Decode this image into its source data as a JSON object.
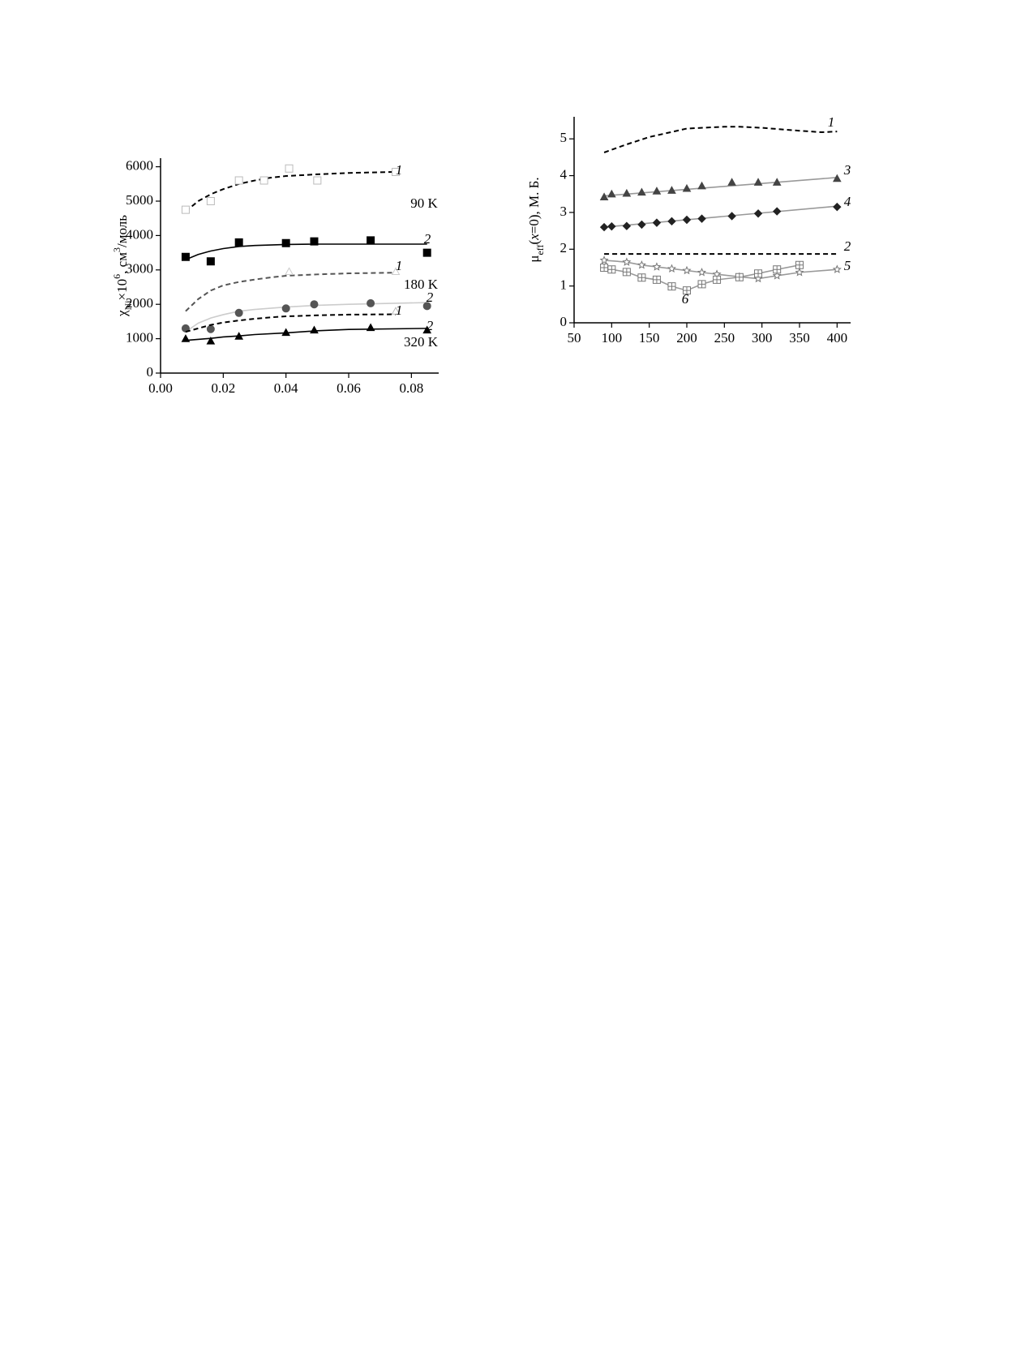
{
  "chart_data": [
    {
      "type": "line",
      "ylabel_parts": [
        "χ",
        "Ni",
        "×10",
        "6",
        ", см",
        "3",
        "/моль"
      ],
      "xlim": [
        0,
        0.0887
      ],
      "ylim": [
        0,
        6250
      ],
      "xticks": [
        {
          "value": 0,
          "label": "0.00"
        },
        0.02,
        0.04,
        0.06,
        0.08
      ],
      "yticks": [
        0,
        1000,
        2000,
        3000,
        4000,
        5000,
        6000
      ],
      "annotations": [
        "90 K",
        "180 K",
        "320 K"
      ],
      "series": [
        {
          "name": "1",
          "line_style": "dashed",
          "line_color": "#000",
          "marker": "square",
          "marker_fill": false,
          "color": "#bbbbbb",
          "line": {
            "x": [
              0.008,
              0.012,
              0.016,
              0.02,
              0.025,
              0.03,
              0.035,
              0.04,
              0.05,
              0.06,
              0.075
            ],
            "values": [
              4700,
              5000,
              5200,
              5350,
              5500,
              5600,
              5680,
              5730,
              5780,
              5820,
              5850
            ]
          },
          "points": {
            "x": [
              0.008,
              0.016,
              0.025,
              0.033,
              0.041,
              0.05,
              0.075
            ],
            "values": [
              4750,
              5000,
              5600,
              5600,
              5950,
              5600,
              5850
            ]
          }
        },
        {
          "name": "2",
          "line_style": "solid",
          "line_color": "#000",
          "marker": "square",
          "marker_fill": true,
          "color": "#000000",
          "line": {
            "x": [
              0.008,
              0.012,
              0.016,
              0.02,
              0.025,
              0.03,
              0.04,
              0.05,
              0.06,
              0.085
            ],
            "values": [
              3300,
              3450,
              3550,
              3620,
              3680,
              3710,
              3740,
              3750,
              3750,
              3750
            ]
          },
          "points": {
            "x": [
              0.008,
              0.016,
              0.025,
              0.04,
              0.049,
              0.067,
              0.085
            ],
            "values": [
              3380,
              3250,
              3800,
              3780,
              3830,
              3860,
              3500
            ]
          }
        },
        {
          "name": "1",
          "line_style": "dashed",
          "line_color": "#555",
          "marker": "triangle",
          "marker_fill": false,
          "color": "#cccccc",
          "line": {
            "x": [
              0.008,
              0.012,
              0.016,
              0.02,
              0.025,
              0.03,
              0.035,
              0.04,
              0.05,
              0.06,
              0.075
            ],
            "values": [
              1800,
              2150,
              2400,
              2550,
              2650,
              2720,
              2780,
              2830,
              2870,
              2900,
              2920
            ]
          },
          "points": {
            "x": [
              0.041,
              0.075
            ],
            "values": [
              2950,
              2950
            ]
          }
        },
        {
          "name": "2",
          "line_style": "solid",
          "line_color": "#cccccc",
          "marker": "circle",
          "marker_fill": true,
          "color": "#555555",
          "line": {
            "x": [
              0.008,
              0.012,
              0.016,
              0.02,
              0.025,
              0.03,
              0.04,
              0.05,
              0.06,
              0.085
            ],
            "values": [
              1200,
              1450,
              1600,
              1700,
              1800,
              1850,
              1920,
              1970,
              2000,
              2050
            ]
          },
          "points": {
            "x": [
              0.008,
              0.016,
              0.025,
              0.04,
              0.049,
              0.067,
              0.085
            ],
            "values": [
              1300,
              1280,
              1750,
              1880,
              2000,
              2030,
              1950
            ]
          }
        },
        {
          "name": "1",
          "line_style": "dashed",
          "line_color": "#000",
          "marker": "triangle",
          "marker_fill": false,
          "color": "#bbbbbb",
          "line": {
            "x": [
              0.008,
              0.012,
              0.016,
              0.02,
              0.025,
              0.03,
              0.035,
              0.04,
              0.05,
              0.06,
              0.075
            ],
            "values": [
              1200,
              1300,
              1400,
              1470,
              1530,
              1580,
              1620,
              1650,
              1680,
              1700,
              1710
            ]
          },
          "points": {
            "x": [
              0.075
            ],
            "values": [
              1800
            ]
          }
        },
        {
          "name": "2",
          "line_style": "solid",
          "line_color": "#000",
          "marker": "triangle",
          "marker_fill": true,
          "color": "#000000",
          "line": {
            "x": [
              0.008,
              0.012,
              0.016,
              0.02,
              0.025,
              0.03,
              0.04,
              0.05,
              0.06,
              0.085
            ],
            "values": [
              950,
              980,
              1010,
              1050,
              1080,
              1120,
              1170,
              1230,
              1270,
              1300
            ]
          },
          "points": {
            "x": [
              0.008,
              0.016,
              0.025,
              0.04,
              0.049,
              0.067,
              0.085
            ],
            "values": [
              1000,
              930,
              1070,
              1180,
              1250,
              1320,
              1250
            ]
          }
        }
      ]
    },
    {
      "type": "line",
      "ylabel_parts": [
        "μ",
        "eff",
        "(",
        "x",
        "=0), М. Б."
      ],
      "xlim": [
        50,
        418
      ],
      "ylim": [
        0,
        5.6
      ],
      "xticks": [
        50,
        100,
        150,
        200,
        250,
        300,
        350,
        400
      ],
      "yticks": [
        0,
        1,
        2,
        3,
        4,
        5
      ],
      "annotations": [],
      "series": [
        {
          "name": "1",
          "line_style": "dashed",
          "line_color": "#000",
          "line": {
            "x": [
              90,
              120,
              150,
              200,
              250,
              270,
              300,
              350,
              380,
              400
            ],
            "values": [
              4.63,
              4.85,
              5.05,
              5.28,
              5.33,
              5.33,
              5.3,
              5.22,
              5.18,
              5.2
            ]
          }
        },
        {
          "name": "2",
          "line_style": "dashed",
          "line_color": "#000",
          "line": {
            "x": [
              90,
              400
            ],
            "values": [
              1.87,
              1.87
            ]
          }
        },
        {
          "name": "3",
          "line_style": "solid",
          "line_color": "#999999",
          "marker": "triangle",
          "marker_fill": true,
          "color": "#444444",
          "line": {
            "x": [
              90,
              400
            ],
            "values": [
              3.45,
              3.95
            ]
          },
          "points": {
            "x": [
              90,
              100,
              120,
              140,
              160,
              180,
              200,
              220,
              260,
              295,
              320,
              400
            ],
            "values": [
              3.42,
              3.5,
              3.52,
              3.55,
              3.58,
              3.6,
              3.65,
              3.72,
              3.82,
              3.82,
              3.82,
              3.92
            ]
          }
        },
        {
          "name": "4",
          "line_style": "solid",
          "line_color": "#999999",
          "marker": "diamond",
          "marker_fill": true,
          "color": "#222222",
          "line": {
            "x": [
              90,
              400
            ],
            "values": [
              2.6,
              3.17
            ]
          },
          "points": {
            "x": [
              90,
              100,
              120,
              140,
              160,
              180,
              200,
              220,
              260,
              295,
              320,
              400
            ],
            "values": [
              2.6,
              2.62,
              2.63,
              2.67,
              2.72,
              2.76,
              2.8,
              2.83,
              2.9,
              2.97,
              3.03,
              3.15
            ]
          }
        },
        {
          "name": "5",
          "line_style": "solid",
          "line_color": "#999999",
          "connect": true,
          "marker": "star",
          "marker_fill": false,
          "color": "#777777",
          "points": {
            "x": [
              90,
              120,
              140,
              160,
              180,
              200,
              220,
              240,
              270,
              295,
              320,
              350,
              400
            ],
            "values": [
              1.7,
              1.65,
              1.57,
              1.52,
              1.47,
              1.42,
              1.37,
              1.32,
              1.25,
              1.2,
              1.28,
              1.37,
              1.45
            ]
          }
        },
        {
          "name": "6",
          "line_style": "solid",
          "line_color": "#999999",
          "connect": true,
          "marker": "boxcross",
          "marker_fill": false,
          "color": "#777777",
          "points": {
            "x": [
              90,
              100,
              120,
              140,
              160,
              180,
              200,
              220,
              240,
              270,
              295,
              320,
              350
            ],
            "values": [
              1.5,
              1.45,
              1.38,
              1.23,
              1.17,
              0.99,
              0.88,
              1.05,
              1.17,
              1.24,
              1.34,
              1.45,
              1.57
            ]
          }
        }
      ]
    }
  ]
}
